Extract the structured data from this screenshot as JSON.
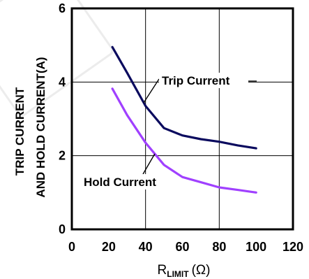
{
  "chart_data": {
    "type": "line",
    "xlabel": "R",
    "xlabel_sub": "LIMIT",
    "xlabel_unit": "(Ω)",
    "ylabel_line1": "TRIP CURRENT",
    "ylabel_line2": "AND HOLD CURRENT(A)",
    "xlim": [
      0,
      120
    ],
    "ylim": [
      0,
      6
    ],
    "xticks": [
      0,
      20,
      40,
      60,
      80,
      100,
      120
    ],
    "yticks": [
      0,
      2,
      4,
      6
    ],
    "grid": true,
    "legend": "none",
    "series": [
      {
        "name": "Trip Current",
        "color": "#0a0a5e",
        "x": [
          22,
          30,
          40,
          50,
          60,
          70,
          80,
          90,
          100
        ],
        "y": [
          4.95,
          4.25,
          3.35,
          2.75,
          2.55,
          2.45,
          2.38,
          2.28,
          2.2
        ]
      },
      {
        "name": "Hold Current",
        "color": "#a040ff",
        "x": [
          22,
          30,
          40,
          50,
          60,
          70,
          80,
          90,
          100
        ],
        "y": [
          3.82,
          3.1,
          2.35,
          1.75,
          1.42,
          1.28,
          1.14,
          1.07,
          1.0
        ]
      }
    ],
    "annotations": [
      {
        "text": "Trip Current",
        "series": 0,
        "point_x": 39
      },
      {
        "text": "Hold Current",
        "series": 1,
        "point_x": 45
      }
    ]
  },
  "watermark": "0"
}
